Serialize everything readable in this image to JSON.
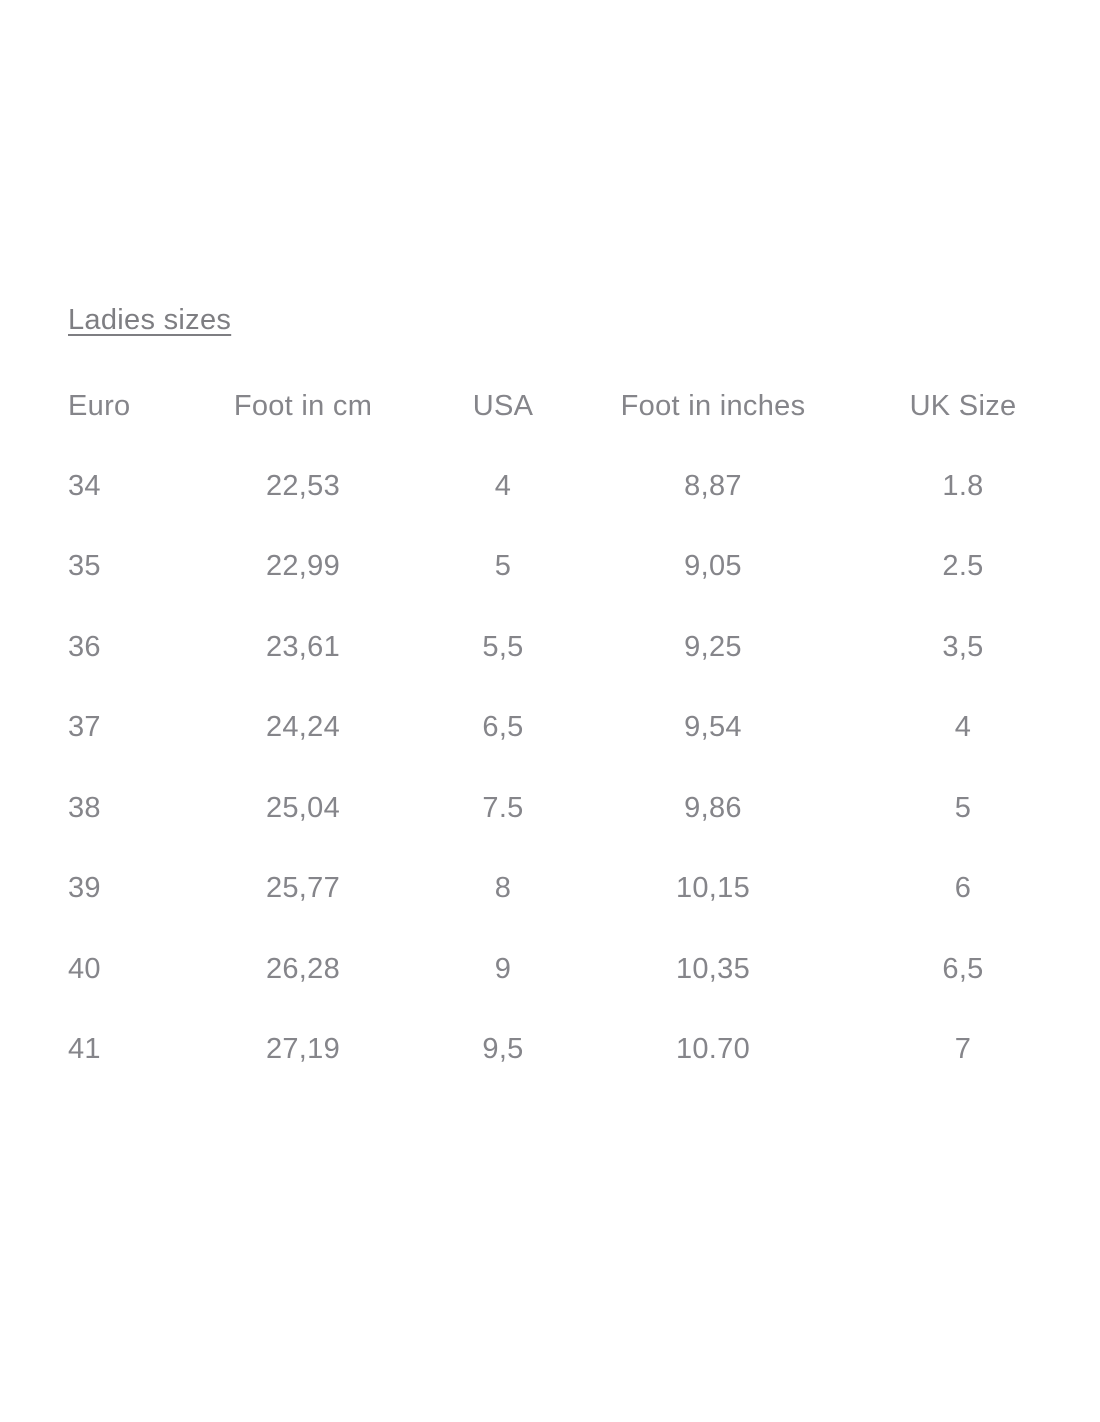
{
  "page": {
    "title": "Ladies sizes"
  },
  "table": {
    "columns": [
      "Euro",
      "Foot in cm",
      "USA",
      "Foot in inches",
      "UK Size"
    ],
    "rows": [
      [
        "34",
        "22,53",
        "4",
        "8,87",
        "1.8"
      ],
      [
        "35",
        "22,99",
        "5",
        "9,05",
        "2.5"
      ],
      [
        "36",
        "23,61",
        "5,5",
        "9,25",
        "3,5"
      ],
      [
        "37",
        "24,24",
        "6,5",
        "9,54",
        "4"
      ],
      [
        "38",
        "25,04",
        "7.5",
        "9,86",
        "5"
      ],
      [
        "39",
        "25,77",
        "8",
        "10,15",
        "6"
      ],
      [
        "40",
        "26,28",
        "9",
        "10,35",
        "6,5"
      ],
      [
        "41",
        "27,19",
        "9,5",
        "10.70",
        "7"
      ]
    ]
  },
  "colors": {
    "text": "#85858a",
    "background": "#ffffff"
  }
}
